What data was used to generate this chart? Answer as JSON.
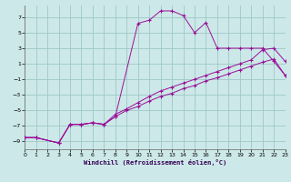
{
  "xlabel": "Windchill (Refroidissement éolien,°C)",
  "bg_color": "#cde8e8",
  "grid_color": "#9dc8c8",
  "line_color": "#991099",
  "xlim": [
    0,
    23
  ],
  "ylim": [
    -10,
    8.5
  ],
  "yticks": [
    -9,
    -7,
    -5,
    -3,
    -1,
    1,
    3,
    5,
    7
  ],
  "xticks": [
    0,
    1,
    2,
    3,
    4,
    5,
    6,
    7,
    8,
    9,
    10,
    11,
    12,
    13,
    14,
    15,
    16,
    17,
    18,
    19,
    20,
    21,
    22,
    23
  ],
  "line1_x": [
    0,
    1,
    3,
    4,
    5,
    6,
    7,
    8,
    10,
    11,
    12,
    13,
    14,
    15,
    16,
    17,
    18,
    19,
    20,
    21,
    22,
    23
  ],
  "line1_y": [
    -8.5,
    -8.5,
    -9.2,
    -6.8,
    -6.8,
    -6.6,
    -6.8,
    -5.8,
    6.2,
    6.6,
    7.8,
    7.8,
    7.2,
    5.0,
    6.3,
    3.0,
    3.0,
    3.0,
    3.0,
    3.0,
    1.3,
    -0.5
  ],
  "line2_x": [
    0,
    1,
    3,
    4,
    5,
    6,
    7,
    8,
    9,
    10,
    11,
    12,
    13,
    14,
    15,
    16,
    17,
    18,
    19,
    20,
    21,
    22,
    23
  ],
  "line2_y": [
    -8.5,
    -8.5,
    -9.2,
    -6.8,
    -6.8,
    -6.6,
    -6.8,
    -5.5,
    -4.8,
    -4.0,
    -3.2,
    -2.5,
    -2.0,
    -1.5,
    -1.0,
    -0.5,
    0.0,
    0.5,
    1.0,
    1.5,
    2.8,
    3.0,
    1.3
  ],
  "line3_x": [
    0,
    1,
    3,
    4,
    5,
    6,
    7,
    8,
    9,
    10,
    11,
    12,
    13,
    14,
    15,
    16,
    17,
    18,
    19,
    20,
    21,
    22,
    23
  ],
  "line3_y": [
    -8.5,
    -8.5,
    -9.2,
    -6.8,
    -6.8,
    -6.6,
    -6.8,
    -5.8,
    -5.0,
    -4.5,
    -3.8,
    -3.2,
    -2.8,
    -2.2,
    -1.8,
    -1.2,
    -0.8,
    -0.3,
    0.2,
    0.7,
    1.2,
    1.6,
    -0.5
  ]
}
